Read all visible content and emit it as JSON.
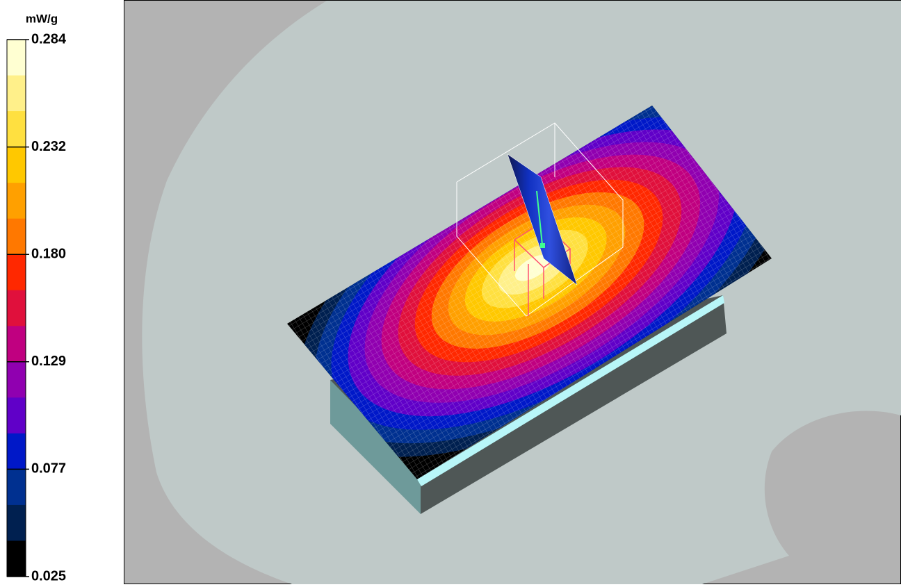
{
  "colorbar": {
    "unit": "mW/g",
    "labels": [
      "0.284",
      "0.232",
      "0.180",
      "0.129",
      "0.077",
      "0.025"
    ]
  }
}
